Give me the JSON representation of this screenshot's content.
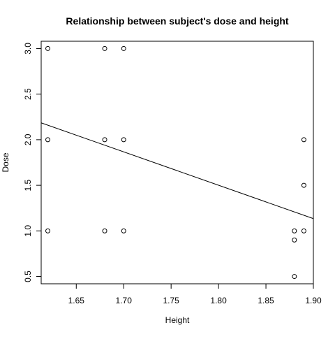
{
  "chart_data": {
    "type": "scatter",
    "title": "Relationship between subject's dose and height",
    "xlabel": "Height",
    "ylabel": "Dose",
    "xlim": [
      1.613,
      1.9
    ],
    "ylim": [
      0.42,
      3.08
    ],
    "x_ticks": [
      1.65,
      1.7,
      1.75,
      1.8,
      1.85,
      1.9
    ],
    "x_tick_labels": [
      "1.65",
      "1.70",
      "1.75",
      "1.80",
      "1.85",
      "1.90"
    ],
    "y_ticks": [
      0.5,
      1.0,
      1.5,
      2.0,
      2.5,
      3.0
    ],
    "y_tick_labels": [
      "0.5",
      "1.0",
      "1.5",
      "2.0",
      "2.5",
      "3.0"
    ],
    "grid": false,
    "points": [
      {
        "x": 1.62,
        "y": 3.0
      },
      {
        "x": 1.62,
        "y": 2.0
      },
      {
        "x": 1.62,
        "y": 1.0
      },
      {
        "x": 1.68,
        "y": 3.0
      },
      {
        "x": 1.68,
        "y": 2.0
      },
      {
        "x": 1.68,
        "y": 1.0
      },
      {
        "x": 1.7,
        "y": 3.0
      },
      {
        "x": 1.7,
        "y": 2.0
      },
      {
        "x": 1.7,
        "y": 1.0
      },
      {
        "x": 1.88,
        "y": 1.0
      },
      {
        "x": 1.88,
        "y": 0.9
      },
      {
        "x": 1.88,
        "y": 0.5
      },
      {
        "x": 1.89,
        "y": 2.0
      },
      {
        "x": 1.89,
        "y": 1.5
      },
      {
        "x": 1.89,
        "y": 1.0
      }
    ],
    "regression_line": {
      "x": [
        1.613,
        1.9
      ],
      "y": [
        2.185,
        1.135
      ]
    },
    "colors": {
      "points": "#000000",
      "line": "#000000",
      "axes": "#000000",
      "background": "#ffffff"
    }
  }
}
